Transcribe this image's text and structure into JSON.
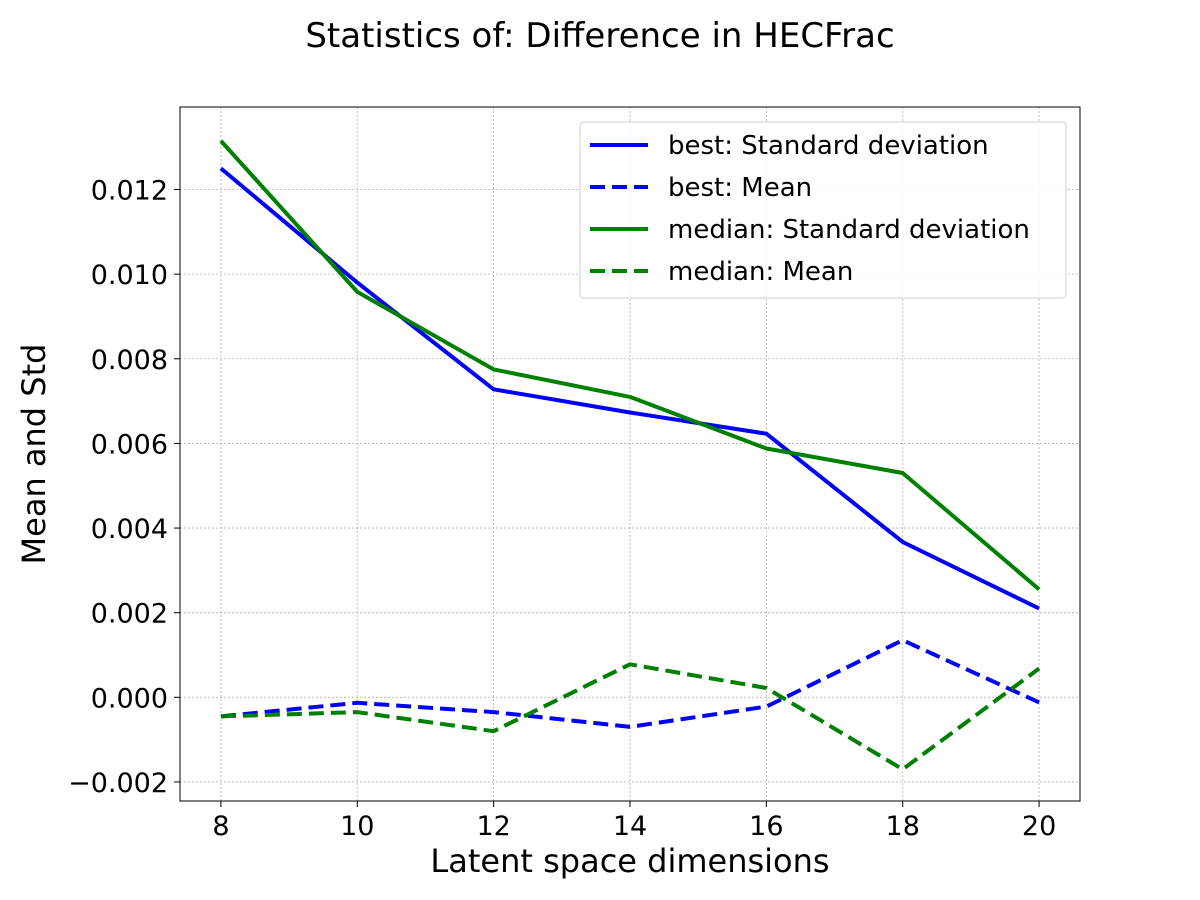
{
  "chart_data": {
    "type": "line",
    "title": "Statistics of: Difference in HECFrac",
    "xlabel": "Latent space dimensions",
    "ylabel": "Mean and Std",
    "x": [
      8,
      10,
      12,
      14,
      16,
      18,
      20
    ],
    "xlim": [
      7.4,
      20.6
    ],
    "ylim": [
      -0.00245,
      0.01395
    ],
    "xticks": [
      "8",
      "10",
      "12",
      "14",
      "16",
      "18",
      "20"
    ],
    "yticks": [
      "−0.002",
      "0.000",
      "0.002",
      "0.004",
      "0.006",
      "0.008",
      "0.010",
      "0.012"
    ],
    "ytick_values": [
      -0.002,
      0.0,
      0.002,
      0.004,
      0.006,
      0.008,
      0.01,
      0.012
    ],
    "grid": true,
    "legend_position": "top-right",
    "series": [
      {
        "name": "best: Standard deviation",
        "color": "#0000ff",
        "dashed": false,
        "values": [
          0.0125,
          0.0098,
          0.00728,
          0.00673,
          0.00623,
          0.00367,
          0.0021
        ]
      },
      {
        "name": "best: Mean",
        "color": "#0000ff",
        "dashed": true,
        "values": [
          -0.00045,
          -0.00013,
          -0.00035,
          -0.0007,
          -0.00022,
          0.00135,
          -0.00012
        ]
      },
      {
        "name": "median: Standard deviation",
        "color": "#008000",
        "dashed": false,
        "values": [
          0.01315,
          0.00958,
          0.00775,
          0.0071,
          0.00588,
          0.0053,
          0.00255
        ]
      },
      {
        "name": "median: Mean",
        "color": "#008000",
        "dashed": true,
        "values": [
          -0.00045,
          -0.00035,
          -0.0008,
          0.00078,
          0.00022,
          -0.0017,
          0.00068
        ]
      }
    ]
  }
}
